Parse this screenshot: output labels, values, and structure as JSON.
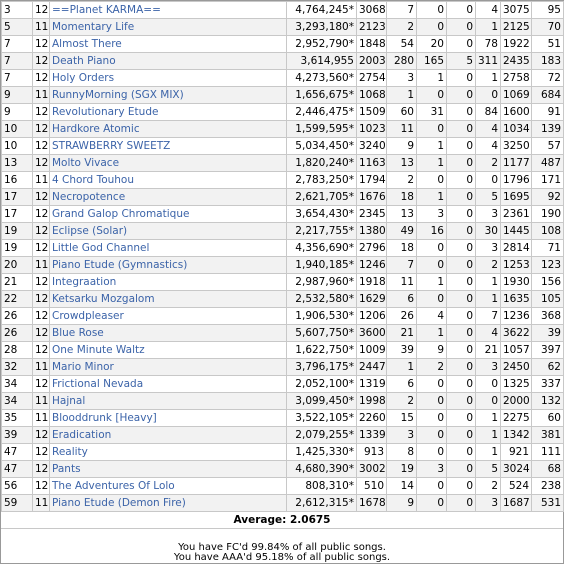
{
  "table": {
    "rows": [
      [
        "3",
        "12",
        "==Planet KARMA==",
        "4,764,245*",
        "3068",
        "7",
        "0",
        "0",
        "4",
        "3075",
        "95"
      ],
      [
        "5",
        "11",
        "Momentary Life",
        "3,293,180*",
        "2123",
        "2",
        "0",
        "0",
        "1",
        "2125",
        "70"
      ],
      [
        "7",
        "12",
        "Almost There",
        "2,952,790*",
        "1848",
        "54",
        "20",
        "0",
        "78",
        "1922",
        "51"
      ],
      [
        "7",
        "12",
        "Death Piano",
        "3,614,955",
        "2003",
        "280",
        "165",
        "5",
        "311",
        "2435",
        "183"
      ],
      [
        "7",
        "12",
        "Holy Orders",
        "4,273,560*",
        "2754",
        "3",
        "1",
        "0",
        "1",
        "2758",
        "72"
      ],
      [
        "9",
        "11",
        "RunnyMorning (SGX MIX)",
        "1,656,675*",
        "1068",
        "1",
        "0",
        "0",
        "0",
        "1069",
        "684"
      ],
      [
        "9",
        "12",
        "Revolutionary Etude",
        "2,446,475*",
        "1509",
        "60",
        "31",
        "0",
        "84",
        "1600",
        "91"
      ],
      [
        "10",
        "12",
        "Hardkore Atomic",
        "1,599,595*",
        "1023",
        "11",
        "0",
        "0",
        "4",
        "1034",
        "139"
      ],
      [
        "10",
        "12",
        "STRAWBERRY SWEETZ",
        "5,034,450*",
        "3240",
        "9",
        "1",
        "0",
        "4",
        "3250",
        "57"
      ],
      [
        "13",
        "12",
        "Molto Vivace",
        "1,820,240*",
        "1163",
        "13",
        "1",
        "0",
        "2",
        "1177",
        "487"
      ],
      [
        "16",
        "11",
        "4 Chord Touhou",
        "2,783,250*",
        "1794",
        "2",
        "0",
        "0",
        "0",
        "1796",
        "171"
      ],
      [
        "17",
        "12",
        "Necropotence",
        "2,621,705*",
        "1676",
        "18",
        "1",
        "0",
        "5",
        "1695",
        "92"
      ],
      [
        "17",
        "12",
        "Grand Galop Chromatique",
        "3,654,430*",
        "2345",
        "13",
        "3",
        "0",
        "3",
        "2361",
        "190"
      ],
      [
        "19",
        "12",
        "Eclipse (Solar)",
        "2,217,755*",
        "1380",
        "49",
        "16",
        "0",
        "30",
        "1445",
        "108"
      ],
      [
        "19",
        "12",
        "Little God Channel",
        "4,356,690*",
        "2796",
        "18",
        "0",
        "0",
        "3",
        "2814",
        "71"
      ],
      [
        "20",
        "11",
        "Piano Etude (Gymnastics)",
        "1,940,185*",
        "1246",
        "7",
        "0",
        "0",
        "2",
        "1253",
        "123"
      ],
      [
        "21",
        "12",
        "Integraation",
        "2,987,960*",
        "1918",
        "11",
        "1",
        "0",
        "1",
        "1930",
        "156"
      ],
      [
        "22",
        "12",
        "Ketsarku Mozgalom",
        "2,532,580*",
        "1629",
        "6",
        "0",
        "0",
        "1",
        "1635",
        "105"
      ],
      [
        "26",
        "12",
        "Crowdpleaser",
        "1,906,530*",
        "1206",
        "26",
        "4",
        "0",
        "7",
        "1236",
        "368"
      ],
      [
        "26",
        "12",
        "Blue Rose",
        "5,607,750*",
        "3600",
        "21",
        "1",
        "0",
        "4",
        "3622",
        "39"
      ],
      [
        "28",
        "12",
        "One Minute Waltz",
        "1,622,750*",
        "1009",
        "39",
        "9",
        "0",
        "21",
        "1057",
        "397"
      ],
      [
        "32",
        "11",
        "Mario Minor",
        "3,796,175*",
        "2447",
        "1",
        "2",
        "0",
        "3",
        "2450",
        "62"
      ],
      [
        "34",
        "12",
        "Frictional Nevada",
        "2,052,100*",
        "1319",
        "6",
        "0",
        "0",
        "0",
        "1325",
        "337"
      ],
      [
        "34",
        "11",
        "Hajnal",
        "3,099,450*",
        "1998",
        "2",
        "0",
        "0",
        "0",
        "2000",
        "132"
      ],
      [
        "35",
        "11",
        "Blooddrunk [Heavy]",
        "3,522,105*",
        "2260",
        "15",
        "0",
        "0",
        "1",
        "2275",
        "60"
      ],
      [
        "39",
        "12",
        "Eradication",
        "2,079,255*",
        "1339",
        "3",
        "0",
        "0",
        "1",
        "1342",
        "381"
      ],
      [
        "47",
        "12",
        "Reality",
        "1,425,330*",
        "913",
        "8",
        "0",
        "0",
        "1",
        "921",
        "111"
      ],
      [
        "47",
        "12",
        "Pants",
        "4,680,390*",
        "3002",
        "19",
        "3",
        "0",
        "5",
        "3024",
        "68"
      ],
      [
        "56",
        "12",
        "The Adventures Of Lolo",
        "808,310*",
        "510",
        "14",
        "0",
        "0",
        "2",
        "524",
        "238"
      ],
      [
        "59",
        "11",
        "Piano Etude (Demon Fire)",
        "2,612,315*",
        "1678",
        "9",
        "0",
        "0",
        "3",
        "1687",
        "531"
      ]
    ]
  },
  "average": {
    "label": "Average:",
    "value": "2.0675"
  },
  "footer": [
    "You have FC'd 99.84% of all public songs.",
    "You have AAA'd 95.18% of all public songs."
  ]
}
